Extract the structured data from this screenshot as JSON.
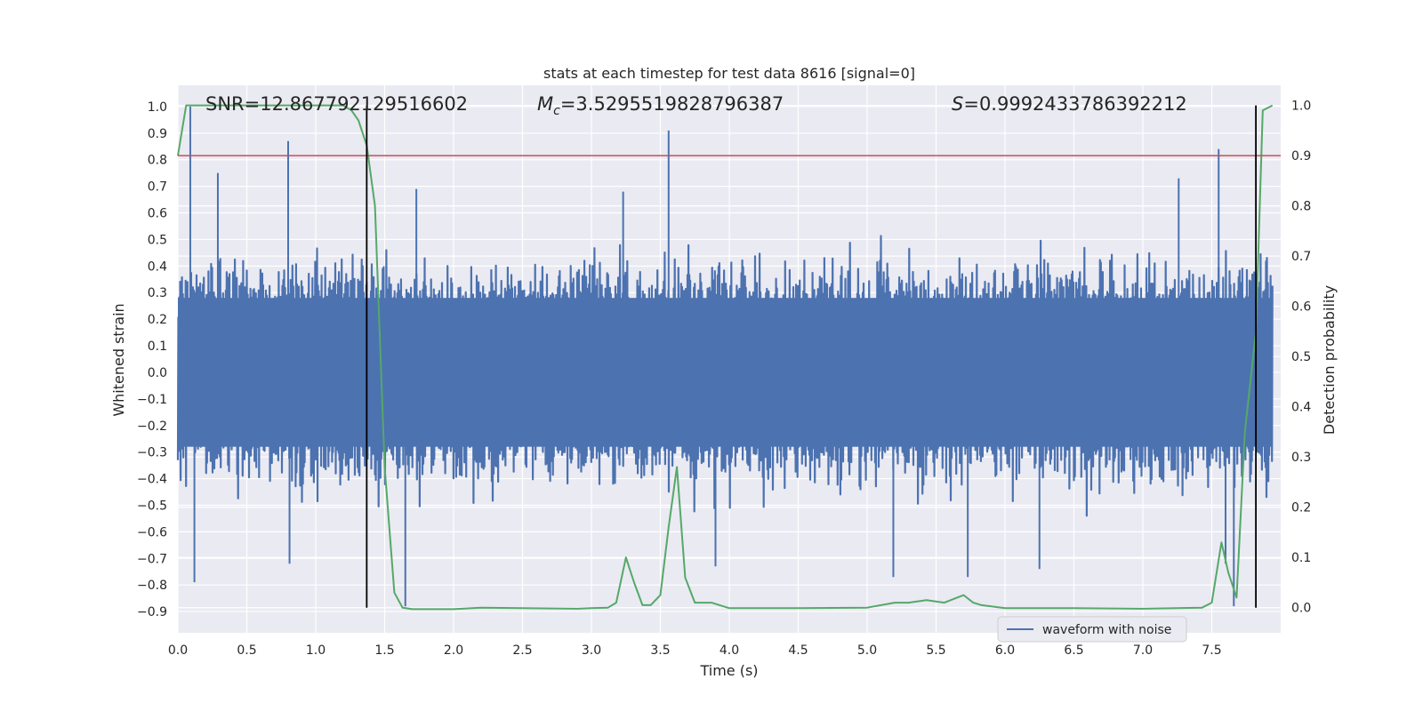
{
  "chart_data": {
    "type": "line",
    "title": "stats at each timestep for test data 8616 [signal=0]",
    "xlabel": "Time (s)",
    "ylabel_left": "Whitened strain",
    "ylabel_right": "Detection probability",
    "xlim": [
      0.0,
      8.0
    ],
    "ylim_left": [
      -0.98,
      1.08
    ],
    "ylim_right": [
      -0.05,
      1.04
    ],
    "x_ticks": [
      "0.0",
      "0.5",
      "1.0",
      "1.5",
      "2.0",
      "2.5",
      "3.0",
      "3.5",
      "4.0",
      "4.5",
      "5.0",
      "5.5",
      "6.0",
      "6.5",
      "7.0",
      "7.5"
    ],
    "x_tick_values": [
      0.0,
      0.5,
      1.0,
      1.5,
      2.0,
      2.5,
      3.0,
      3.5,
      4.0,
      4.5,
      5.0,
      5.5,
      6.0,
      6.5,
      7.0,
      7.5
    ],
    "y_left_ticks": [
      "1.0",
      "0.9",
      "0.8",
      "0.7",
      "0.6",
      "0.5",
      "0.4",
      "0.3",
      "0.2",
      "0.1",
      "0.0",
      "−0.1",
      "−0.2",
      "−0.3",
      "−0.4",
      "−0.5",
      "−0.6",
      "−0.7",
      "−0.8",
      "−0.9"
    ],
    "y_left_tick_values": [
      1.0,
      0.9,
      0.8,
      0.7,
      0.6,
      0.5,
      0.4,
      0.3,
      0.2,
      0.1,
      0.0,
      -0.1,
      -0.2,
      -0.3,
      -0.4,
      -0.5,
      -0.6,
      -0.7,
      -0.8,
      -0.9
    ],
    "y_right_ticks": [
      "1.0",
      "0.9",
      "0.8",
      "0.7",
      "0.6",
      "0.5",
      "0.4",
      "0.3",
      "0.2",
      "0.1",
      "0.0"
    ],
    "y_right_tick_values": [
      1.0,
      0.9,
      0.8,
      0.7,
      0.6,
      0.5,
      0.4,
      0.3,
      0.2,
      0.1,
      0.0
    ],
    "annotations": {
      "snr": "SNR=12.867792129516602",
      "mc_symbol": "M",
      "mc_sub": "c",
      "mc_value": "=3.5295519828796387",
      "s_symbol": "S",
      "s_value": "=0.9992433786392212"
    },
    "threshold_probability": 0.9,
    "vertical_lines_x": [
      1.37,
      7.82
    ],
    "waveform": {
      "name": "waveform with noise",
      "typical_envelope": [
        -0.45,
        0.45
      ],
      "spikes": [
        {
          "x": 0.09,
          "y": 1.0
        },
        {
          "x": 0.12,
          "y": -0.79
        },
        {
          "x": 0.29,
          "y": 0.75
        },
        {
          "x": 0.8,
          "y": 0.87
        },
        {
          "x": 0.81,
          "y": -0.72
        },
        {
          "x": 1.37,
          "y": 0.34
        },
        {
          "x": 1.65,
          "y": -0.88
        },
        {
          "x": 1.73,
          "y": 0.69
        },
        {
          "x": 3.23,
          "y": 0.68
        },
        {
          "x": 3.56,
          "y": 0.91
        },
        {
          "x": 3.9,
          "y": -0.73
        },
        {
          "x": 5.19,
          "y": -0.77
        },
        {
          "x": 5.73,
          "y": -0.77
        },
        {
          "x": 6.25,
          "y": -0.74
        },
        {
          "x": 7.55,
          "y": 0.84
        },
        {
          "x": 7.66,
          "y": -0.88
        },
        {
          "x": 7.6,
          "y": -0.72
        },
        {
          "x": 7.26,
          "y": 0.73
        }
      ]
    },
    "probability_series": {
      "x": [
        0.0,
        0.06,
        0.12,
        0.5,
        1.0,
        1.2,
        1.26,
        1.31,
        1.37,
        1.43,
        1.5,
        1.57,
        1.63,
        1.7,
        2.0,
        2.2,
        2.5,
        2.9,
        3.0,
        3.12,
        3.18,
        3.25,
        3.31,
        3.37,
        3.43,
        3.5,
        3.56,
        3.62,
        3.68,
        3.75,
        3.81,
        3.87,
        4.0,
        4.5,
        5.0,
        5.2,
        5.3,
        5.43,
        5.56,
        5.7,
        5.77,
        5.83,
        6.0,
        6.5,
        7.0,
        7.43,
        7.5,
        7.57,
        7.62,
        7.68,
        7.74,
        7.82,
        7.87,
        7.94
      ],
      "y": [
        0.9,
        1.0,
        1.0,
        1.0,
        1.0,
        1.0,
        0.99,
        0.97,
        0.92,
        0.8,
        0.28,
        0.03,
        0.0,
        -0.003,
        -0.003,
        0.0,
        -0.001,
        -0.002,
        -0.001,
        0.0,
        0.01,
        0.1,
        0.05,
        0.005,
        0.005,
        0.025,
        0.16,
        0.28,
        0.06,
        0.01,
        0.01,
        0.01,
        -0.001,
        -0.001,
        0.0,
        0.01,
        0.01,
        0.015,
        0.01,
        0.025,
        0.01,
        0.005,
        -0.001,
        -0.001,
        -0.002,
        0.0,
        0.01,
        0.13,
        0.07,
        0.02,
        0.35,
        0.55,
        0.99,
        1.0
      ]
    },
    "colors": {
      "waveform": "#4c72b0",
      "probability": "#55a868",
      "threshold": "#c44e52",
      "vertical": "#000000",
      "plot_bg": "#eaeaf2",
      "grid": "#ffffff"
    },
    "legend_position": "lower-right"
  }
}
